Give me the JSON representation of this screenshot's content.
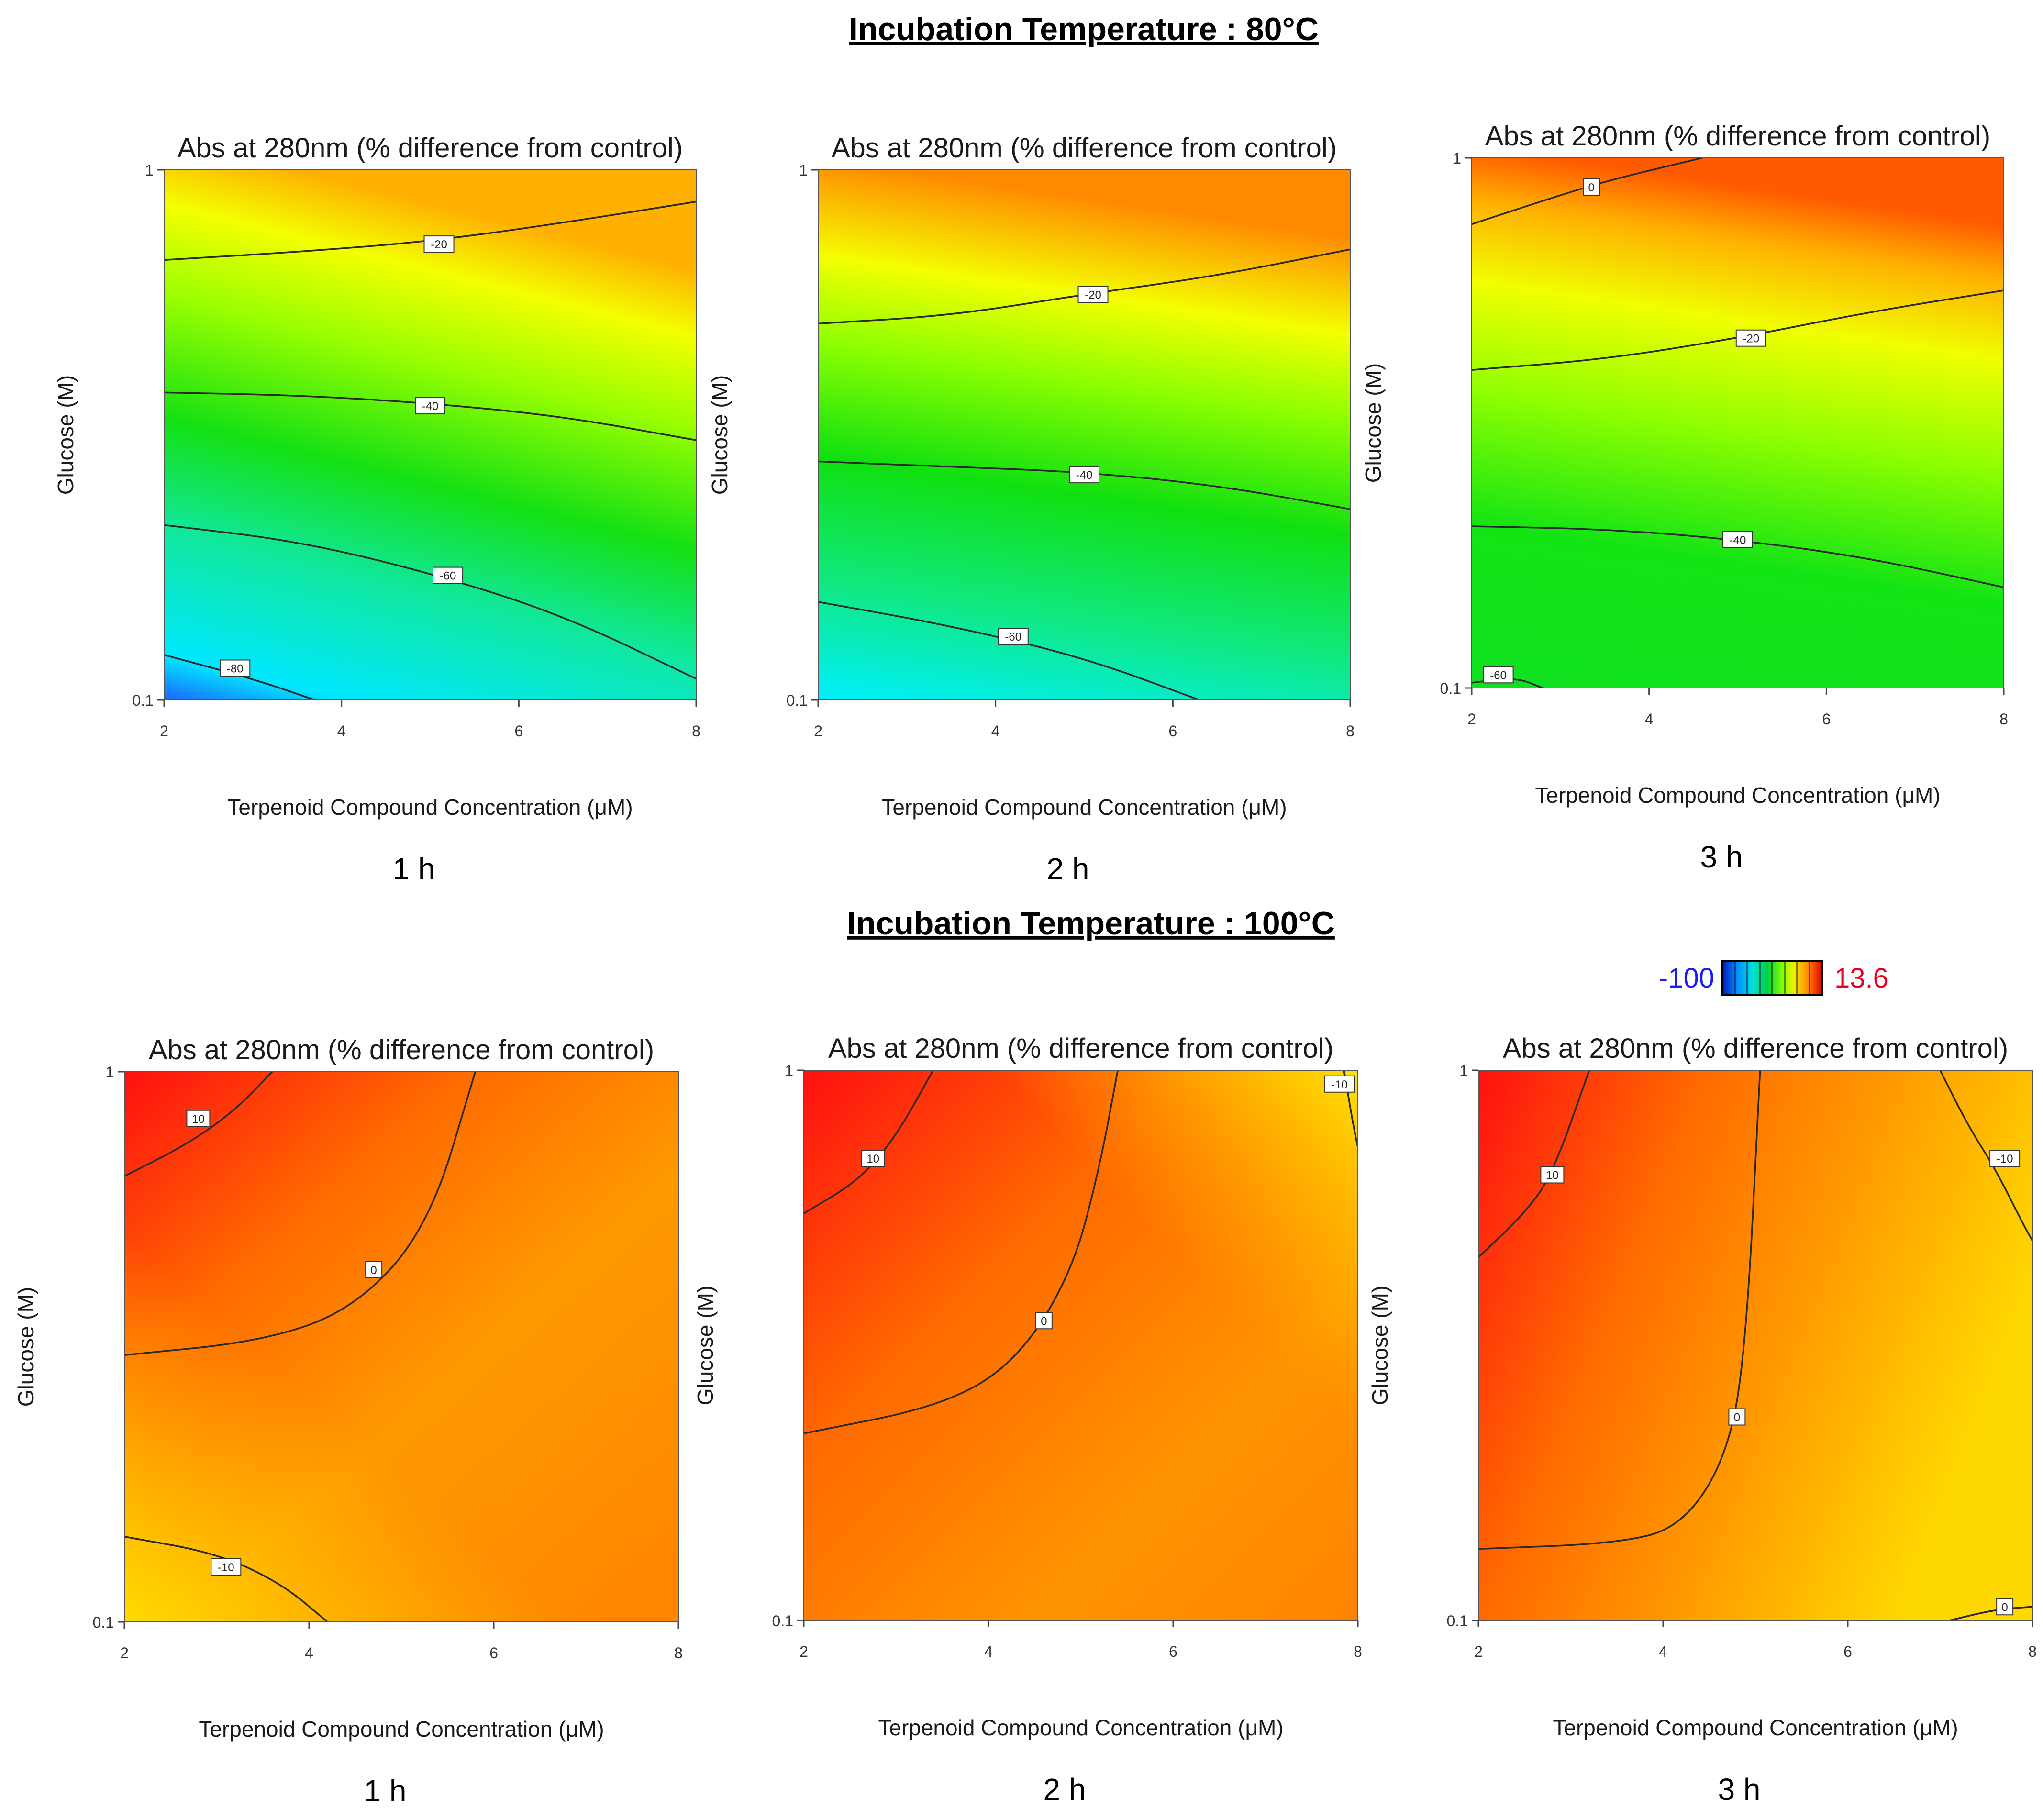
{
  "sections": [
    {
      "title": "Incubation Temperature : 80°C"
    },
    {
      "title": "Incubation Temperature : 100°C"
    }
  ],
  "legend": {
    "min_label": "-100",
    "max_label": "13.6",
    "min_color": "#1a1aff",
    "max_color": "#e8001c"
  },
  "chart_data": [
    {
      "type": "contour",
      "section": "80°C",
      "time_label": "1 h",
      "title": "Abs at 280nm (% difference from control)",
      "xlabel": "Terpenoid Compound Concentration (μM)",
      "ylabel": "Glucose (M)",
      "xticks": [
        "2",
        "4",
        "6",
        "8"
      ],
      "yticks": [
        "1",
        "0.1"
      ],
      "xlim": [
        2,
        8
      ],
      "ylim": [
        0.1,
        1
      ],
      "contours": [
        {
          "level": -20,
          "label": "-20",
          "points": [
            [
              2,
              0.83
            ],
            [
              3.5,
              0.845
            ],
            [
              5,
              0.865
            ],
            [
              6.5,
              0.9
            ],
            [
              8,
              0.94
            ]
          ],
          "label_at": [
            5.1,
            0.86
          ]
        },
        {
          "level": -40,
          "label": "-40",
          "points": [
            [
              2,
              0.58
            ],
            [
              3.5,
              0.575
            ],
            [
              5,
              0.56
            ],
            [
              6.5,
              0.535
            ],
            [
              8,
              0.49
            ]
          ],
          "label_at": [
            5.0,
            0.555
          ]
        },
        {
          "level": -60,
          "label": "-60",
          "points": [
            [
              2,
              0.33
            ],
            [
              3.5,
              0.3
            ],
            [
              5,
              0.24
            ],
            [
              6.5,
              0.16
            ],
            [
              8,
              0.04
            ]
          ],
          "label_at": [
            5.2,
            0.235
          ]
        },
        {
          "level": -80,
          "label": "-80",
          "points": [
            [
              2,
              0.085
            ],
            [
              3,
              0.04
            ],
            [
              3.7,
              0
            ]
          ],
          "label_at": [
            2.8,
            0.06
          ]
        }
      ]
    },
    {
      "type": "contour",
      "section": "80°C",
      "time_label": "2 h",
      "title": "Abs at 280nm (% difference from control)",
      "xlabel": "Terpenoid Compound Concentration (μM)",
      "ylabel": "Glucose (M)",
      "xticks": [
        "2",
        "4",
        "6",
        "8"
      ],
      "yticks": [
        "1",
        "0.1"
      ],
      "xlim": [
        2,
        8
      ],
      "ylim": [
        0.1,
        1
      ],
      "contours": [
        {
          "level": -20,
          "label": "-20",
          "points": [
            [
              2,
              0.71
            ],
            [
              3.5,
              0.725
            ],
            [
              5,
              0.765
            ],
            [
              6.5,
              0.8
            ],
            [
              8,
              0.85
            ]
          ],
          "label_at": [
            5.1,
            0.765
          ]
        },
        {
          "level": -40,
          "label": "-40",
          "points": [
            [
              2,
              0.45
            ],
            [
              3.5,
              0.44
            ],
            [
              5,
              0.43
            ],
            [
              6.5,
              0.405
            ],
            [
              8,
              0.36
            ]
          ],
          "label_at": [
            5.0,
            0.425
          ]
        },
        {
          "level": -60,
          "label": "-60",
          "points": [
            [
              2,
              0.185
            ],
            [
              3.5,
              0.14
            ],
            [
              5,
              0.08
            ],
            [
              6.3,
              0
            ]
          ],
          "label_at": [
            4.2,
            0.12
          ]
        }
      ]
    },
    {
      "type": "contour",
      "section": "80°C",
      "time_label": "3 h",
      "title": "Abs at 280nm (% difference from control)",
      "xlabel": "Terpenoid Compound Concentration (μM)",
      "ylabel": "Glucose (M)",
      "xticks": [
        "2",
        "4",
        "6",
        "8"
      ],
      "yticks": [
        "1",
        "0.1"
      ],
      "xlim": [
        2,
        8
      ],
      "ylim": [
        0.1,
        1
      ],
      "contours": [
        {
          "level": 0,
          "label": "0",
          "points": [
            [
              2,
              0.875
            ],
            [
              3,
              0.93
            ],
            [
              3.6,
              0.96
            ],
            [
              4.6,
              1
            ]
          ],
          "label_at": [
            3.35,
            0.945
          ]
        },
        {
          "level": -20,
          "label": "-20",
          "points": [
            [
              2,
              0.6
            ],
            [
              3.5,
              0.62
            ],
            [
              5,
              0.66
            ],
            [
              6.5,
              0.71
            ],
            [
              8,
              0.75
            ]
          ],
          "label_at": [
            5.15,
            0.66
          ]
        },
        {
          "level": -40,
          "label": "-40",
          "points": [
            [
              2,
              0.305
            ],
            [
              3.5,
              0.3
            ],
            [
              5,
              0.28
            ],
            [
              6.5,
              0.245
            ],
            [
              8,
              0.19
            ]
          ],
          "label_at": [
            5.0,
            0.28
          ]
        },
        {
          "level": -60,
          "label": "-60",
          "points": [
            [
              2,
              0.01
            ],
            [
              2.5,
              0.02
            ],
            [
              2.8,
              0
            ]
          ],
          "label_at": [
            2.3,
            0.025
          ]
        }
      ]
    },
    {
      "type": "contour",
      "section": "100°C",
      "time_label": "1 h",
      "title": "Abs at 280nm (% difference from control)",
      "xlabel": "Terpenoid Compound Concentration (μM)",
      "ylabel": "Glucose (M)",
      "xticks": [
        "2",
        "4",
        "6",
        "8"
      ],
      "yticks": [
        "1",
        "0.1"
      ],
      "xlim": [
        2,
        8
      ],
      "ylim": [
        0.1,
        1
      ],
      "contours": [
        {
          "level": 10,
          "label": "10",
          "points": [
            [
              2,
              0.81
            ],
            [
              2.7,
              0.87
            ],
            [
              3.2,
              0.93
            ],
            [
              3.6,
              1
            ]
          ],
          "label_at": [
            2.8,
            0.915
          ]
        },
        {
          "level": 0,
          "label": "0",
          "points": [
            [
              2,
              0.485
            ],
            [
              3.5,
              0.51
            ],
            [
              4.5,
              0.57
            ],
            [
              5.3,
              0.72
            ],
            [
              5.8,
              1
            ]
          ],
          "label_at": [
            4.7,
            0.64
          ]
        },
        {
          "level": -10,
          "label": "-10",
          "points": [
            [
              2,
              0.155
            ],
            [
              3,
              0.125
            ],
            [
              3.7,
              0.07
            ],
            [
              4.2,
              0
            ]
          ],
          "label_at": [
            3.1,
            0.1
          ]
        }
      ]
    },
    {
      "type": "contour",
      "section": "100°C",
      "time_label": "2 h",
      "title": "Abs at 280nm (% difference from control)",
      "xlabel": "Terpenoid Compound Concentration (μM)",
      "ylabel": "Glucose (M)",
      "xticks": [
        "2",
        "4",
        "6",
        "8"
      ],
      "yticks": [
        "1",
        "0.1"
      ],
      "xlim": [
        2,
        8
      ],
      "ylim": [
        0.1,
        1
      ],
      "contours": [
        {
          "level": 10,
          "label": "10",
          "points": [
            [
              2,
              0.74
            ],
            [
              2.6,
              0.8
            ],
            [
              3.0,
              0.88
            ],
            [
              3.4,
              1
            ]
          ],
          "label_at": [
            2.75,
            0.84
          ]
        },
        {
          "level": 0,
          "label": "0",
          "points": [
            [
              2,
              0.34
            ],
            [
              3.5,
              0.39
            ],
            [
              4.3,
              0.47
            ],
            [
              4.9,
              0.63
            ],
            [
              5.2,
              0.82
            ],
            [
              5.4,
              1
            ]
          ],
          "label_at": [
            4.6,
            0.545
          ]
        },
        {
          "level": -10,
          "label": "-10",
          "points": [
            [
              7.85,
              1
            ],
            [
              7.95,
              0.9
            ],
            [
              8,
              0.86
            ]
          ],
          "label_at": [
            7.8,
            0.975
          ]
        }
      ]
    },
    {
      "type": "contour",
      "section": "100°C",
      "time_label": "3 h",
      "title": "Abs at 280nm (% difference from control)",
      "xlabel": "Terpenoid Compound Concentration (μM)",
      "ylabel": "Glucose (M)",
      "xticks": [
        "2",
        "4",
        "6",
        "8"
      ],
      "yticks": [
        "1",
        "0.1"
      ],
      "xlim": [
        2,
        8
      ],
      "ylim": [
        0.1,
        1
      ],
      "contours": [
        {
          "level": 10,
          "label": "10",
          "points": [
            [
              2,
              0.66
            ],
            [
              2.5,
              0.74
            ],
            [
              2.8,
              0.81
            ],
            [
              3.2,
              1
            ]
          ],
          "label_at": [
            2.8,
            0.81
          ]
        },
        {
          "level": 0,
          "label": "0",
          "points": [
            [
              2,
              0.13
            ],
            [
              3.5,
              0.14
            ],
            [
              4.2,
              0.17
            ],
            [
              4.7,
              0.3
            ],
            [
              4.9,
              0.5
            ],
            [
              5.05,
              1
            ]
          ],
          "label_at": [
            4.8,
            0.37
          ]
        },
        {
          "level": -10,
          "label": "-10",
          "points": [
            [
              7.0,
              1
            ],
            [
              7.3,
              0.9
            ],
            [
              7.6,
              0.82
            ],
            [
              7.9,
              0.72
            ],
            [
              8,
              0.69
            ]
          ],
          "label_at": [
            7.7,
            0.84
          ]
        },
        {
          "level": 0,
          "label": "0",
          "points": [
            [
              7.1,
              0
            ],
            [
              7.6,
              0.02
            ],
            [
              8,
              0.025
            ]
          ],
          "label_at": [
            7.7,
            0.025
          ]
        }
      ]
    }
  ]
}
